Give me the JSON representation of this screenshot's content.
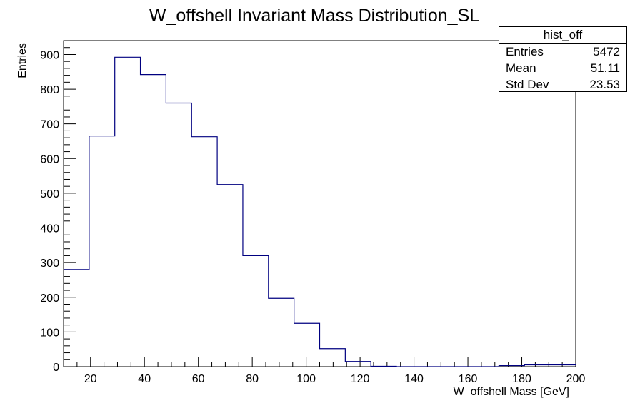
{
  "chart_data": {
    "type": "bar",
    "title": "W_offshell Invariant Mass Distribution_SL",
    "xlabel": "W_offshell Mass [GeV]",
    "ylabel": "Entries",
    "xlim": [
      10,
      200
    ],
    "ylim": [
      0,
      940
    ],
    "x_ticks": [
      20,
      40,
      60,
      80,
      100,
      120,
      140,
      160,
      180,
      200
    ],
    "y_ticks": [
      0,
      100,
      200,
      300,
      400,
      500,
      600,
      700,
      800,
      900
    ],
    "bin_edges": [
      10,
      19.5,
      29,
      38.5,
      48,
      57.5,
      67,
      76.5,
      86,
      95.5,
      105,
      114.5,
      124,
      133.5,
      143,
      152.5,
      162,
      171.5,
      181,
      190.5,
      200
    ],
    "values": [
      280,
      665,
      892,
      842,
      760,
      663,
      525,
      320,
      197,
      125,
      52,
      15,
      1,
      0,
      0,
      0,
      0,
      3,
      5,
      5
    ],
    "line_color": "#000080",
    "grid": false
  },
  "stats_box": {
    "name": "hist_off",
    "rows": [
      {
        "label": "Entries",
        "value": "5472"
      },
      {
        "label": "Mean",
        "value": "51.11"
      },
      {
        "label": "Std Dev",
        "value": "23.53"
      }
    ]
  }
}
